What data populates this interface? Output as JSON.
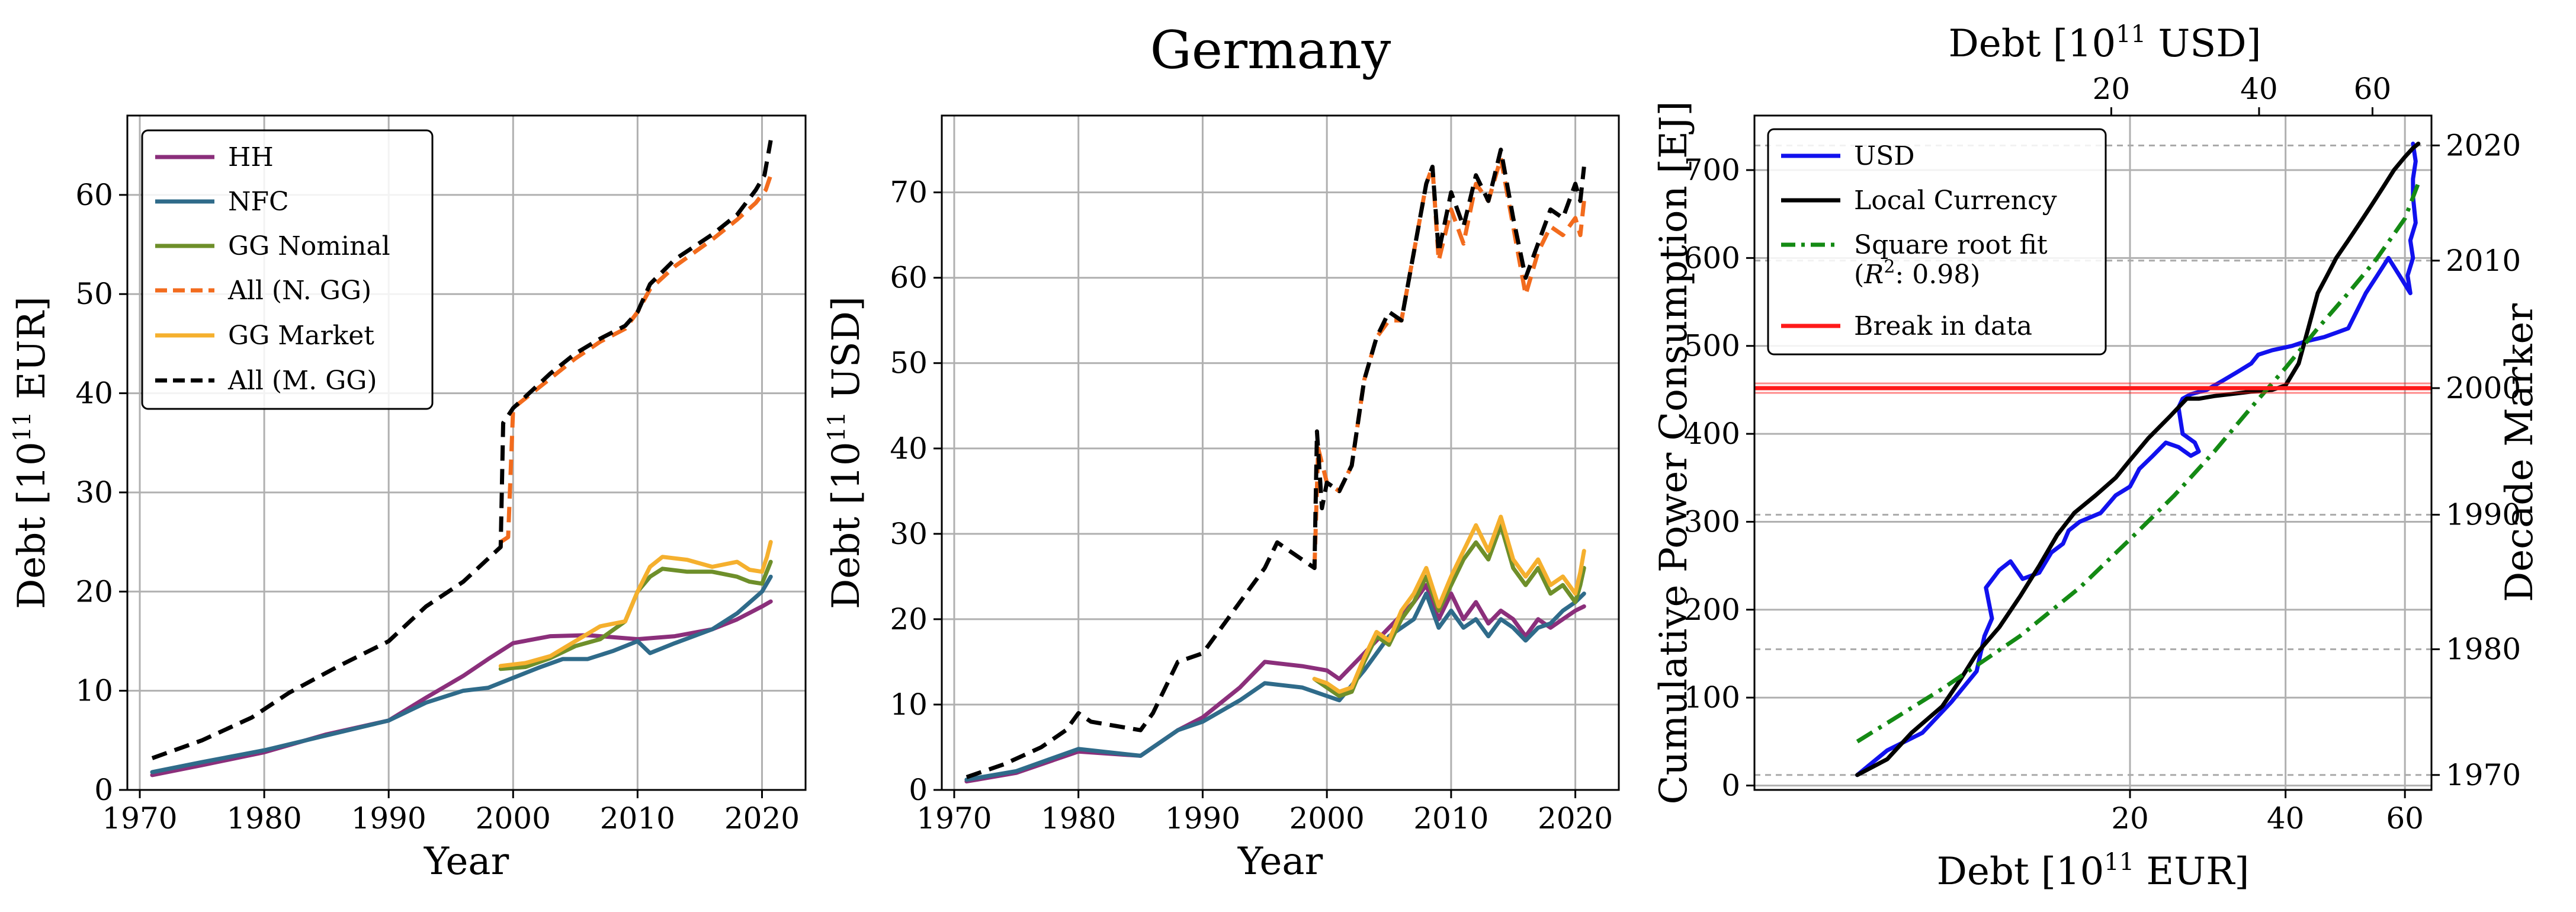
{
  "suptitle": "Germany",
  "colors": {
    "HH": "#8b2f7b",
    "NFC": "#2f6b8a",
    "GG Nominal": "#6e8f2a",
    "All (N. GG)": "#f26b1d",
    "GG Market": "#f5b02e",
    "All (M. GG)": "#000000",
    "USD": "#1111ee",
    "Local Currency": "#000000",
    "Square root fit": "#148a14",
    "Break in data": "#ff1a1a",
    "Decade": "#aaaaaa"
  },
  "chart_data": [
    {
      "type": "line",
      "title": "",
      "xlabel": "Year",
      "ylabel": "Debt [10^11 EUR]",
      "xlim": [
        1969,
        2023.5
      ],
      "ylim": [
        0,
        68
      ],
      "xticks": [
        1970,
        1980,
        1990,
        2000,
        2010,
        2020
      ],
      "yticks": [
        0,
        10,
        20,
        30,
        40,
        50,
        60
      ],
      "grid": true,
      "legend_position": "upper-left",
      "series": [
        {
          "name": "HH",
          "style": "solid",
          "x": [
            1971,
            1975,
            1980,
            1985,
            1990,
            1993,
            1996,
            1998,
            2000,
            2003,
            2006,
            2010,
            2013,
            2016,
            2018,
            2020,
            2020.7
          ],
          "y": [
            1.5,
            2.5,
            3.8,
            5.6,
            7,
            9.3,
            11.5,
            13.2,
            14.8,
            15.5,
            15.6,
            15.2,
            15.5,
            16.2,
            17.2,
            18.5,
            19.0
          ]
        },
        {
          "name": "NFC",
          "style": "solid",
          "x": [
            1971,
            1975,
            1980,
            1985,
            1990,
            1993,
            1996,
            1998,
            2000,
            2002,
            2004,
            2006,
            2008,
            2010,
            2011,
            2013,
            2016,
            2018,
            2020,
            2020.7
          ],
          "y": [
            1.8,
            2.8,
            4.0,
            5.5,
            7.0,
            8.8,
            10.0,
            10.3,
            11.3,
            12.3,
            13.2,
            13.2,
            14.0,
            15.0,
            13.8,
            14.8,
            16.2,
            17.8,
            20.0,
            21.5
          ]
        },
        {
          "name": "GG Nominal",
          "style": "solid",
          "x": [
            1999,
            2001,
            2003,
            2005,
            2007,
            2009,
            2010,
            2011,
            2012,
            2014,
            2016,
            2018,
            2019,
            2020,
            2020.7
          ],
          "y": [
            12.2,
            12.4,
            13.3,
            14.5,
            15.2,
            17.0,
            20.0,
            21.5,
            22.3,
            22.0,
            22.0,
            21.5,
            21.0,
            20.8,
            23.0
          ]
        },
        {
          "name": "All (N. GG)",
          "style": "dashed",
          "x": [
            1999,
            1999.6,
            2000,
            2003,
            2005,
            2007,
            2009,
            2010,
            2011,
            2013,
            2016,
            2018,
            2019.5,
            2020.3,
            2020.7
          ],
          "y": [
            25,
            25.5,
            38.5,
            41.5,
            43.5,
            45.2,
            46.5,
            48.2,
            50.5,
            52.8,
            55.5,
            57.5,
            59.2,
            60.5,
            62.0
          ]
        },
        {
          "name": "GG Market",
          "style": "solid",
          "x": [
            1999,
            2001,
            2003,
            2005,
            2007,
            2009,
            2010,
            2011,
            2012,
            2014,
            2016,
            2018,
            2019,
            2020,
            2020.4,
            2020.7
          ],
          "y": [
            12.5,
            12.8,
            13.5,
            15.0,
            16.5,
            17.0,
            20.0,
            22.5,
            23.5,
            23.2,
            22.5,
            23.0,
            22.2,
            22.0,
            23.5,
            25.0
          ]
        },
        {
          "name": "All (M. GG)",
          "style": "dashed",
          "x": [
            1971,
            1975,
            1979,
            1982,
            1986,
            1990,
            1993,
            1996,
            1999,
            1999.2,
            2000,
            2003,
            2005,
            2007,
            2009,
            2010,
            2011,
            2013,
            2016,
            2018,
            2019.5,
            2020.2,
            2020.7
          ],
          "y": [
            3.2,
            5.0,
            7.3,
            9.8,
            12.5,
            15.0,
            18.5,
            21.0,
            24.5,
            37,
            38.5,
            42.0,
            44.0,
            45.5,
            46.8,
            48.2,
            51.0,
            53.5,
            56.0,
            58.0,
            60.5,
            62.0,
            65.5
          ]
        }
      ]
    },
    {
      "type": "line",
      "title": "",
      "xlabel": "Year",
      "ylabel": "Debt [10^11 USD]",
      "xlim": [
        1969,
        2023.5
      ],
      "ylim": [
        0,
        79
      ],
      "xticks": [
        1970,
        1980,
        1990,
        2000,
        2010,
        2020
      ],
      "yticks": [
        0,
        10,
        20,
        30,
        40,
        50,
        60,
        70
      ],
      "grid": true,
      "series": [
        {
          "name": "HH",
          "style": "solid",
          "x": [
            1971,
            1975,
            1980,
            1985,
            1988,
            1990,
            1993,
            1995,
            1998,
            2000,
            2001,
            2003,
            2005,
            2007,
            2008,
            2009,
            2010,
            2011,
            2012,
            2013,
            2014,
            2015,
            2016,
            2017,
            2018,
            2019,
            2020,
            2020.7
          ],
          "y": [
            1,
            2,
            4.5,
            4,
            7,
            8.5,
            12,
            15,
            14.5,
            14,
            13,
            16,
            19,
            22,
            24,
            20,
            23,
            20,
            22,
            19.5,
            21,
            20,
            18,
            20,
            19,
            20,
            21,
            21.5
          ]
        },
        {
          "name": "NFC",
          "style": "solid",
          "x": [
            1971,
            1975,
            1980,
            1985,
            1988,
            1990,
            1993,
            1995,
            1998,
            2000,
            2001,
            2003,
            2005,
            2007,
            2008,
            2009,
            2010,
            2011,
            2012,
            2013,
            2014,
            2015,
            2016,
            2017,
            2018,
            2019,
            2020,
            2020.7
          ],
          "y": [
            1.2,
            2.2,
            4.8,
            4,
            7,
            8,
            10.5,
            12.5,
            12,
            11,
            10.5,
            14,
            18,
            20,
            23,
            19,
            21,
            19,
            20,
            18,
            20,
            19,
            17.5,
            19,
            19.5,
            21,
            22,
            23
          ]
        },
        {
          "name": "GG Nominal",
          "style": "solid",
          "x": [
            1999,
            2000,
            2001,
            2002,
            2003,
            2004,
            2005,
            2006,
            2007,
            2008,
            2009,
            2010,
            2011,
            2012,
            2013,
            2014,
            2015,
            2016,
            2017,
            2018,
            2019,
            2020,
            2020.4,
            2020.7
          ],
          "y": [
            13,
            12,
            11,
            11.5,
            15,
            18,
            17,
            20,
            22,
            25,
            21,
            24,
            27,
            29,
            27,
            31,
            26,
            24,
            26,
            23,
            24,
            22,
            24,
            26
          ]
        },
        {
          "name": "All (N. GG)",
          "style": "dashed",
          "x": [
            1999,
            1999.3,
            2000,
            2001,
            2002,
            2003,
            2004,
            2005,
            2006,
            2007,
            2008,
            2008.5,
            2009,
            2010,
            2011,
            2012,
            2013,
            2014,
            2015,
            2016,
            2017,
            2018,
            2019,
            2020,
            2020.4,
            2020.7
          ],
          "y": [
            26,
            40,
            36,
            35,
            38,
            48,
            53,
            55,
            55,
            63,
            71,
            73,
            62,
            68,
            64,
            71,
            69,
            74,
            66,
            58,
            63,
            66,
            65,
            67,
            65,
            69
          ]
        },
        {
          "name": "GG Market",
          "style": "solid",
          "x": [
            1999,
            2000,
            2001,
            2002,
            2003,
            2004,
            2005,
            2006,
            2007,
            2008,
            2009,
            2010,
            2011,
            2012,
            2013,
            2014,
            2015,
            2016,
            2017,
            2018,
            2019,
            2020,
            2020.4,
            2020.7
          ],
          "y": [
            13,
            12.5,
            11.5,
            12,
            15.5,
            18.5,
            17.5,
            21,
            23,
            26,
            21.5,
            25,
            28,
            31,
            28,
            32,
            27,
            25,
            27,
            24,
            25,
            23,
            25.5,
            28
          ]
        },
        {
          "name": "All (M. GG)",
          "style": "dashed",
          "x": [
            1971,
            1974,
            1977,
            1979,
            1980,
            1981,
            1983,
            1985,
            1986,
            1987,
            1988,
            1990,
            1992,
            1993,
            1994,
            1995,
            1996,
            1997,
            1998,
            1999,
            1999.2,
            1999.6,
            2000,
            2001,
            2002,
            2003,
            2004,
            2005,
            2006,
            2007,
            2008,
            2008.5,
            2009,
            2010,
            2011,
            2012,
            2013,
            2014,
            2015,
            2016,
            2017,
            2018,
            2019,
            2020,
            2020.4,
            2020.7
          ],
          "y": [
            1.5,
            3,
            5,
            7,
            9,
            8,
            7.5,
            7,
            9,
            12,
            15,
            16,
            20,
            22,
            24,
            26,
            29,
            28,
            27,
            26,
            42,
            33,
            36,
            35,
            38,
            48,
            53,
            56,
            55,
            63,
            71,
            73,
            63,
            70,
            66,
            72,
            69,
            75,
            67,
            60,
            64,
            68,
            67,
            71,
            69,
            73
          ]
        }
      ]
    },
    {
      "type": "line",
      "title": "",
      "xlabel": "Debt [10^11 EUR]",
      "ylabel": "Cumulative Power Consumption [EJ]",
      "x2label": "Debt [10^11 USD]",
      "y2label": "Decade Marker",
      "xaxis_scale": "sqrt",
      "xlim": [
        0,
        65
      ],
      "ylim": [
        -5,
        762
      ],
      "xticks": [
        20,
        40,
        60
      ],
      "yticks": [
        0,
        100,
        200,
        300,
        400,
        500,
        600,
        700
      ],
      "x2lim": [
        0,
        72.0
      ],
      "x2ticks": [
        20,
        40,
        60
      ],
      "decade_markers": [
        {
          "label": "1970",
          "y": 12
        },
        {
          "label": "1980",
          "y": 155
        },
        {
          "label": "1990",
          "y": 308
        },
        {
          "label": "2000",
          "y": 452
        },
        {
          "label": "2010",
          "y": 597
        },
        {
          "label": "2020",
          "y": 728
        }
      ],
      "legend_position": "upper-left",
      "series": [
        {
          "name": "USD",
          "style": "solid",
          "x": [
            1.5,
            2.5,
            4,
            5.5,
            7,
            7.5,
            8,
            7.6,
            8.5,
            9.3,
            10.2,
            11.5,
            12.5,
            13.5,
            14,
            15,
            17,
            18.5,
            20,
            20.5,
            21,
            22.5,
            24,
            25.5,
            27,
            28,
            27.5,
            26,
            25.5,
            26,
            27,
            29,
            31,
            33,
            35,
            36,
            38,
            41,
            43,
            46,
            48,
            50,
            53,
            55,
            57,
            59,
            61,
            60.5,
            61.5,
            61,
            62,
            61.5,
            61.5,
            62,
            61.5
          ],
          "y": [
            12,
            40,
            60,
            95,
            130,
            170,
            190,
            225,
            245,
            255,
            235,
            242,
            265,
            275,
            290,
            300,
            310,
            330,
            340,
            350,
            360,
            375,
            390,
            385,
            375,
            380,
            390,
            400,
            430,
            440,
            445,
            450,
            460,
            470,
            480,
            490,
            495,
            500,
            505,
            510,
            515,
            520,
            560,
            580,
            600,
            580,
            560,
            580,
            600,
            620,
            640,
            670,
            690,
            710,
            730
          ]
        },
        {
          "name": "Local Currency",
          "style": "solid",
          "x": [
            1.5,
            2.5,
            3.5,
            5,
            6,
            7,
            8.5,
            10,
            11.5,
            13,
            14.5,
            16.5,
            18.5,
            20,
            22,
            24.5,
            26.5,
            28,
            30,
            32,
            35,
            38,
            40,
            42,
            43.5,
            45,
            46.5,
            48,
            50,
            52,
            54,
            56,
            58,
            60,
            61.5,
            62.5
          ],
          "y": [
            12,
            30,
            60,
            90,
            120,
            150,
            180,
            215,
            250,
            285,
            310,
            330,
            350,
            370,
            395,
            420,
            440,
            440,
            443,
            445,
            448,
            450,
            455,
            480,
            520,
            560,
            580,
            600,
            620,
            640,
            660,
            680,
            700,
            715,
            725,
            730
          ]
        },
        {
          "name": "Square root fit",
          "style": "dashdot",
          "x": [
            1.5,
            5,
            10,
            15,
            20,
            25,
            30,
            35,
            40,
            45,
            50,
            55,
            60,
            62.5
          ],
          "y": [
            50,
            110,
            170,
            225,
            280,
            330,
            380,
            430,
            475,
            520,
            560,
            600,
            645,
            685
          ]
        },
        {
          "name": "Break in data",
          "style": "solid",
          "x": [
            0,
            65
          ],
          "y": [
            452,
            452
          ]
        }
      ],
      "legend_labels": [
        "USD",
        "Local Currency",
        "Square root fit",
        "(R²: 0.98)",
        "Break in data"
      ]
    }
  ]
}
